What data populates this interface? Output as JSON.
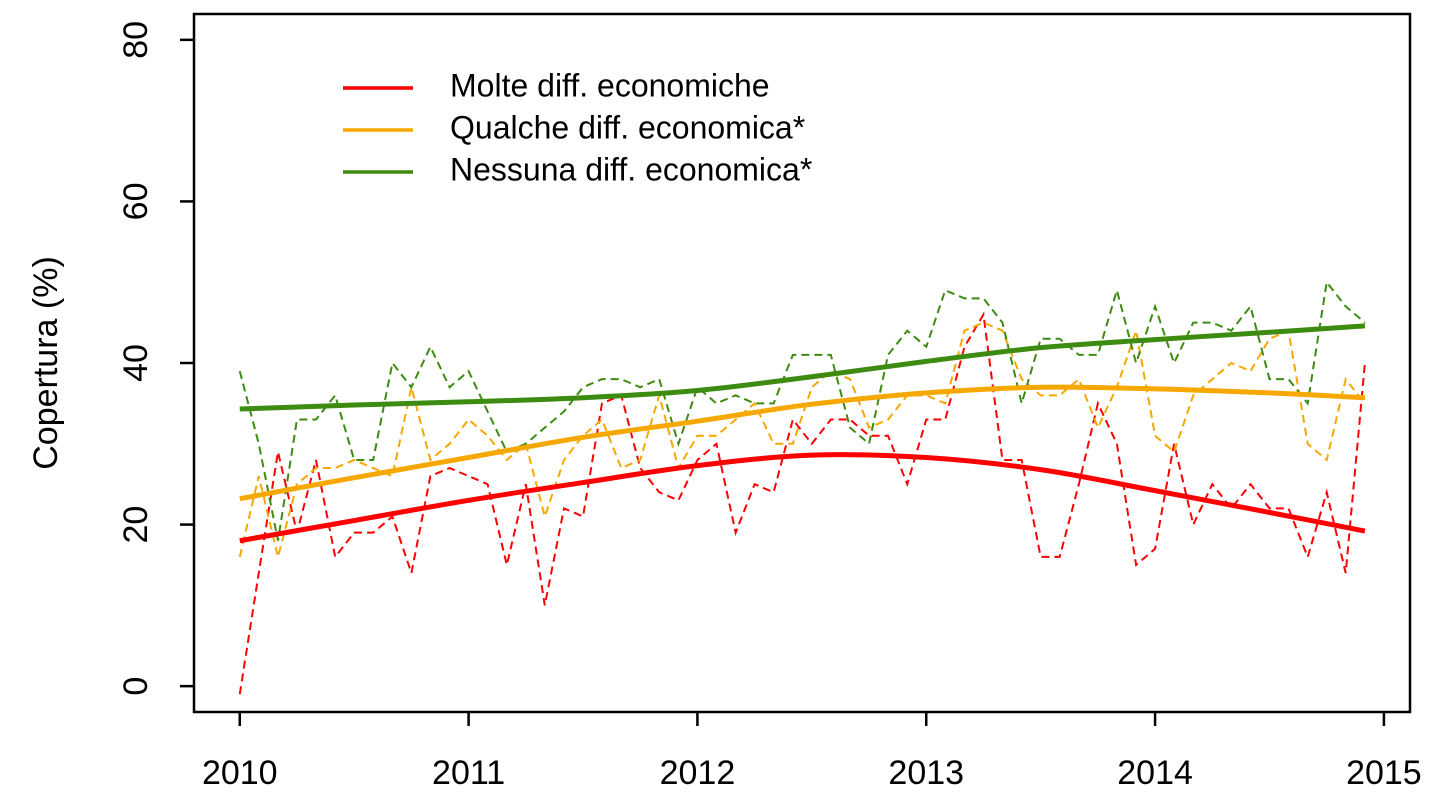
{
  "chart_data": {
    "type": "line",
    "ylabel": "Copertura (%)",
    "x": [
      2010,
      2010.083,
      2010.167,
      2010.25,
      2010.333,
      2010.417,
      2010.5,
      2010.583,
      2010.667,
      2010.75,
      2010.833,
      2010.917,
      2011,
      2011.083,
      2011.167,
      2011.25,
      2011.333,
      2011.417,
      2011.5,
      2011.583,
      2011.667,
      2011.75,
      2011.833,
      2011.917,
      2012,
      2012.083,
      2012.167,
      2012.25,
      2012.333,
      2012.417,
      2012.5,
      2012.583,
      2012.667,
      2012.75,
      2012.833,
      2012.917,
      2013,
      2013.083,
      2013.167,
      2013.25,
      2013.333,
      2013.417,
      2013.5,
      2013.583,
      2013.667,
      2013.75,
      2013.833,
      2013.917,
      2014,
      2014.083,
      2014.167,
      2014.25,
      2014.333,
      2014.417,
      2014.5,
      2014.583,
      2014.667,
      2014.75,
      2014.833,
      2014.917
    ],
    "trend_x": [
      2010,
      2010.5,
      2011,
      2011.5,
      2012,
      2012.5,
      2013,
      2013.5,
      2014,
      2014.5,
      2014.917
    ],
    "series": [
      {
        "name": "Molte diff. economiche",
        "color": "#ff0000",
        "values": [
          -1,
          14,
          29,
          19,
          28,
          16,
          19,
          19,
          21,
          14,
          26,
          27,
          26,
          25,
          15,
          25,
          10,
          22,
          21,
          35,
          36,
          27,
          24,
          23,
          28,
          30,
          19,
          25,
          24,
          33,
          30,
          33,
          33,
          31,
          31,
          25,
          33,
          33,
          42,
          46,
          28,
          28,
          16,
          16,
          25,
          35,
          30,
          15,
          17,
          30,
          20,
          25,
          22,
          25,
          22,
          22,
          16,
          24,
          14,
          40
        ],
        "trend": [
          18,
          20.5,
          23,
          25.2,
          27.3,
          28.6,
          28.3,
          26.8,
          24.2,
          21.5,
          19.2
        ]
      },
      {
        "name": "Qualche diff. economica*",
        "color": "#f7a800",
        "values": [
          16,
          26,
          16,
          25,
          27,
          27,
          28,
          27,
          26,
          37,
          28,
          30,
          33,
          31,
          28,
          30,
          21,
          28,
          31,
          33,
          27,
          28,
          36,
          27,
          31,
          31,
          33,
          35,
          30,
          30,
          37,
          39,
          38,
          32,
          33,
          36,
          36,
          35,
          44,
          45,
          44,
          38,
          36,
          36,
          38,
          32,
          37,
          44,
          31,
          29,
          36,
          38,
          40,
          39,
          43,
          44,
          30,
          28,
          38,
          35
        ],
        "trend": [
          23.2,
          25.8,
          28.3,
          30.8,
          32.8,
          34.9,
          36.3,
          37,
          36.8,
          36.3,
          35.7
        ]
      },
      {
        "name": "Nessuna diff. economica*",
        "color": "#3d8b10",
        "values": [
          39,
          30,
          18,
          33,
          33,
          36,
          28,
          28,
          40,
          37,
          42,
          37,
          39,
          34,
          29,
          30,
          32,
          34,
          37,
          38,
          38,
          37,
          38,
          30,
          37,
          35,
          36,
          35,
          35,
          41,
          41,
          41,
          32,
          30,
          41,
          44,
          42,
          49,
          48,
          48,
          45,
          35,
          43,
          43,
          41,
          41,
          49,
          40,
          47,
          40,
          45,
          45,
          44,
          47,
          38,
          38,
          35,
          50,
          47,
          45
        ],
        "trend": [
          34.3,
          34.8,
          35.2,
          35.7,
          36.6,
          38.3,
          40.2,
          41.9,
          42.9,
          43.8,
          44.6
        ]
      }
    ],
    "xlim": [
      2009.8,
      2015.114
    ],
    "xticks": [
      2010,
      2011,
      2012,
      2013,
      2014,
      2015
    ],
    "ylim": [
      -3.2,
      83.2
    ],
    "yticks": [
      0,
      20,
      40,
      60,
      80
    ],
    "legend": "top-left"
  }
}
